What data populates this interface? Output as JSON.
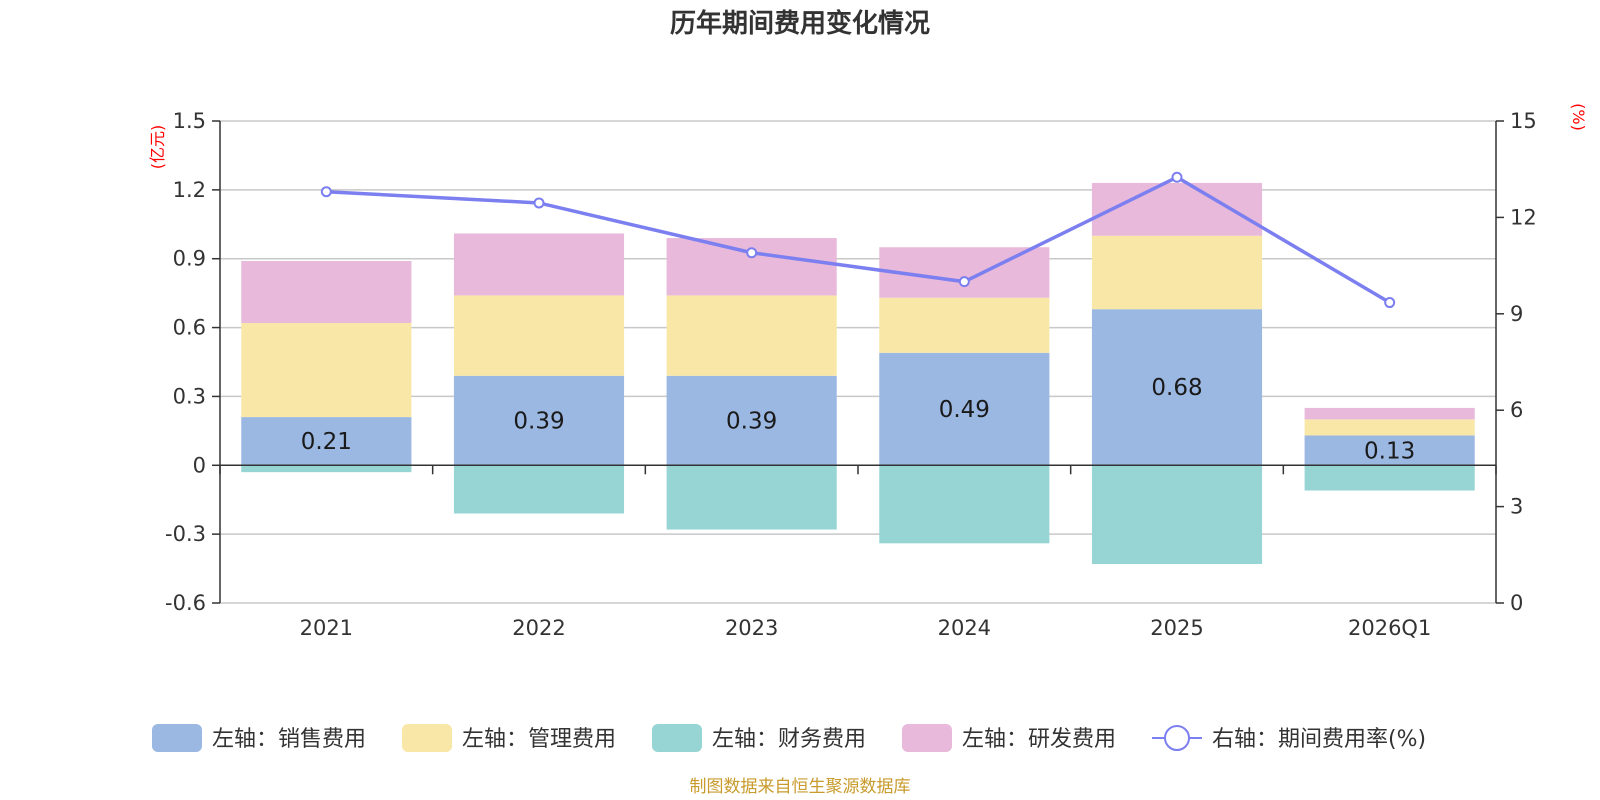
{
  "chart_data": {
    "type": "bar",
    "title": "历年期间费用变化情况",
    "categories": [
      "2021",
      "2022",
      "2023",
      "2024",
      "2025",
      "2026Q1"
    ],
    "left_axis": {
      "unit": "(亿元)",
      "ylim": [
        -0.6,
        1.5
      ],
      "ticks": [
        -0.6,
        -0.3,
        0,
        0.3,
        0.6,
        0.9,
        1.2,
        1.5
      ],
      "tick_labels": [
        "-0.6",
        "-0.3",
        "0",
        "0.3",
        "0.6",
        "0.9",
        "1.2",
        "1.5"
      ]
    },
    "right_axis": {
      "unit": "(%)",
      "ylim": [
        0,
        15
      ],
      "ticks": [
        0,
        3,
        6,
        9,
        12,
        15
      ],
      "tick_labels": [
        "0",
        "3",
        "6",
        "9",
        "12",
        "15"
      ]
    },
    "series": [
      {
        "name": "左轴：销售费用",
        "type": "stacked-bar",
        "color": "#9bb8e2",
        "values": [
          0.21,
          0.39,
          0.39,
          0.49,
          0.68,
          0.13
        ],
        "data_labels": [
          "0.21",
          "0.39",
          "0.39",
          "0.49",
          "0.68",
          "0.13"
        ]
      },
      {
        "name": "左轴：管理费用",
        "type": "stacked-bar",
        "color": "#f8e7a6",
        "values": [
          0.41,
          0.35,
          0.35,
          0.24,
          0.32,
          0.07
        ]
      },
      {
        "name": "左轴：财务费用",
        "type": "stacked-bar",
        "color": "#97d4d4",
        "values": [
          -0.03,
          -0.21,
          -0.28,
          -0.34,
          -0.43,
          -0.11
        ]
      },
      {
        "name": "左轴：研发费用",
        "type": "stacked-bar",
        "color": "#e8b9da",
        "values": [
          0.27,
          0.27,
          0.25,
          0.22,
          0.23,
          0.05
        ]
      },
      {
        "name": "右轴：期间费用率(%)",
        "type": "line",
        "axis": "right",
        "color": "#7b7ff0",
        "values": [
          12.8,
          12.45,
          10.9,
          10.0,
          13.25,
          9.35
        ]
      }
    ],
    "legend_position": "bottom",
    "grid": true
  },
  "source_text": "制图数据来自恒生聚源数据库"
}
